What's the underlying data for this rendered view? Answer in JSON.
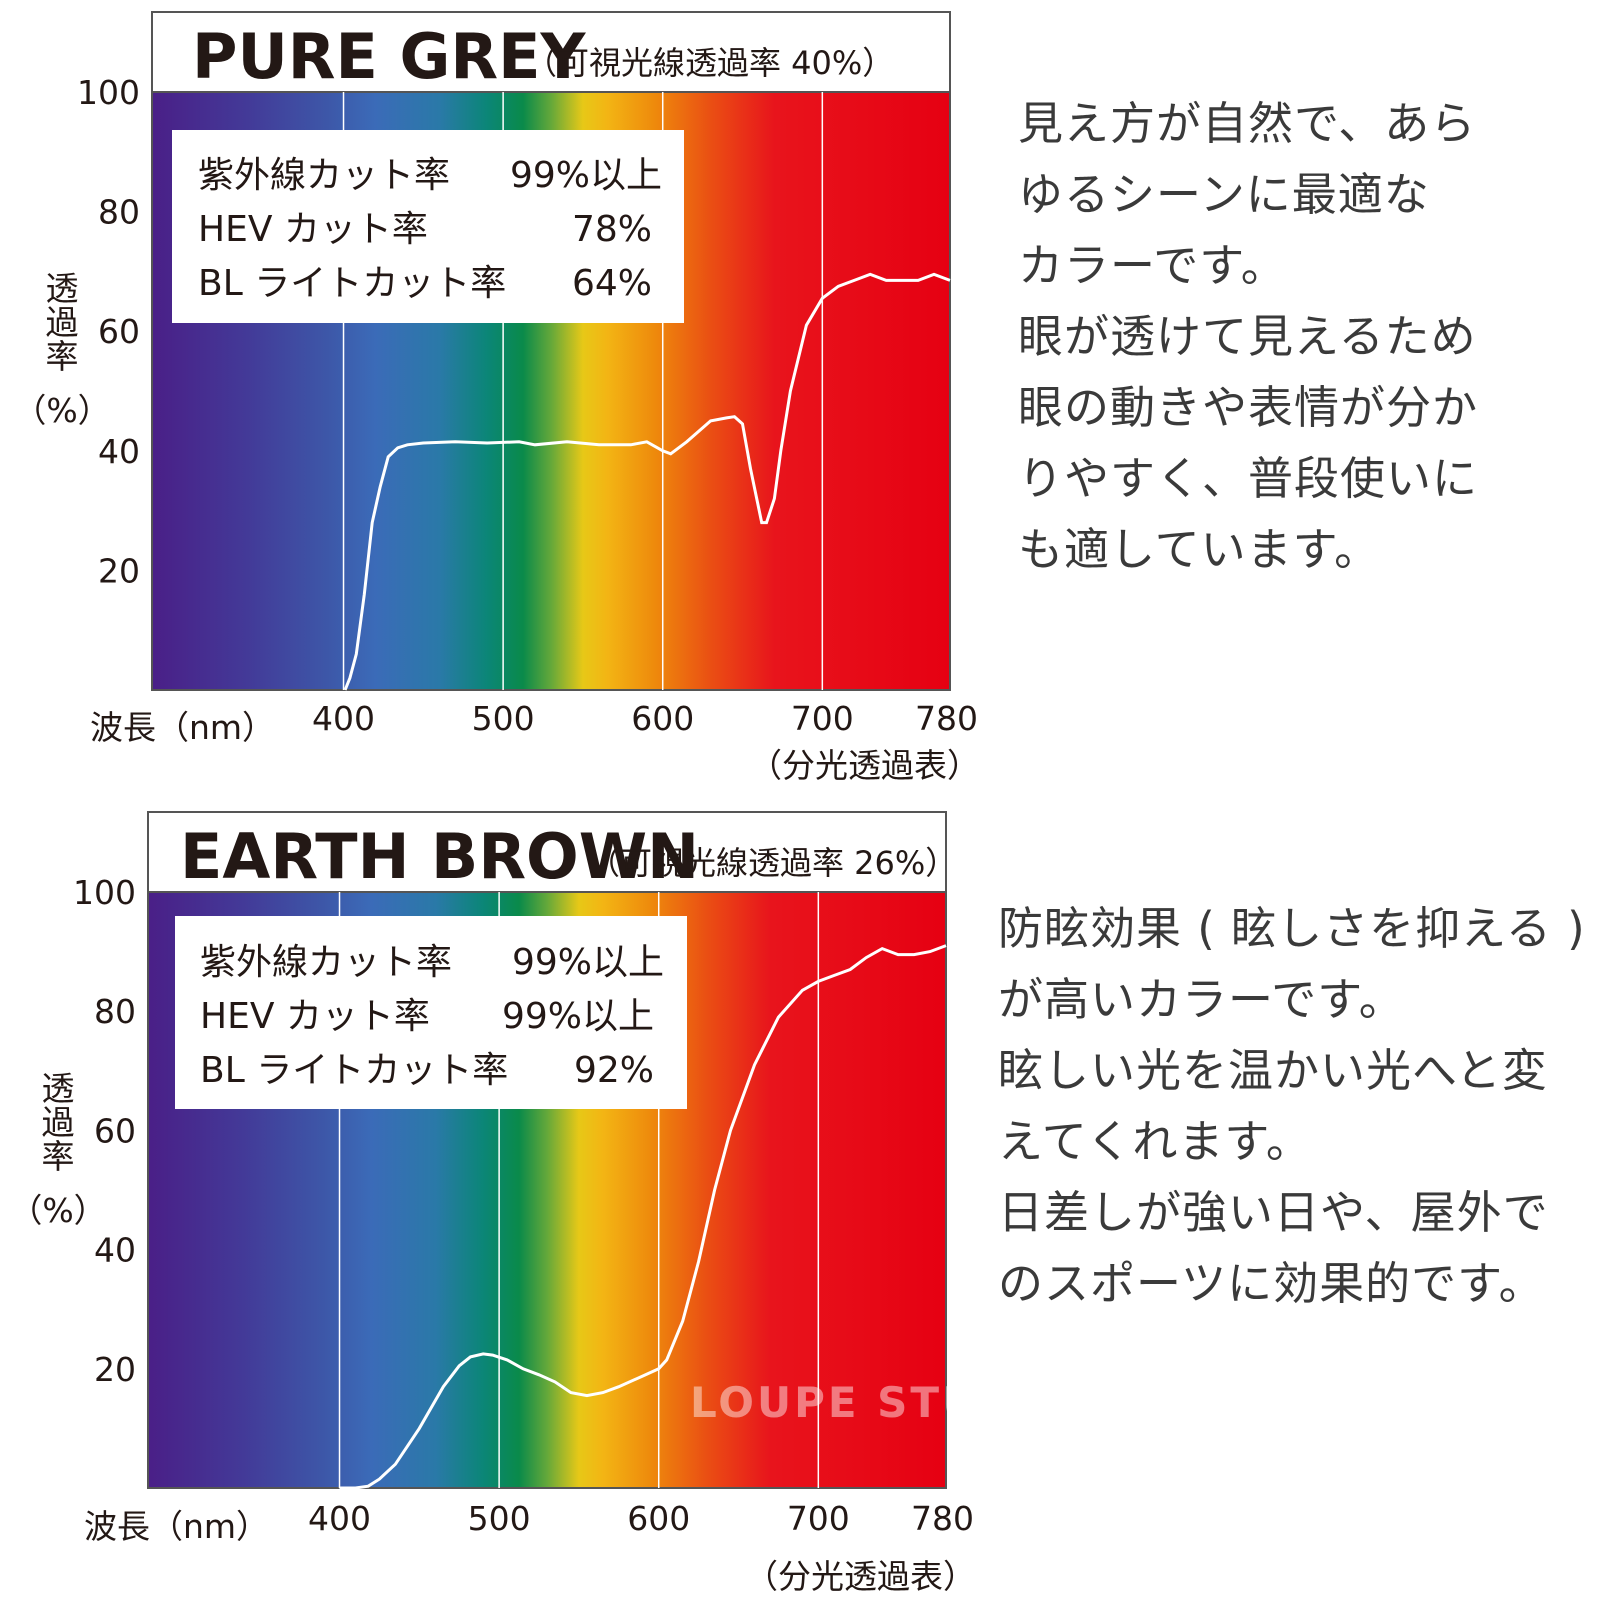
{
  "chart_data": [
    {
      "type": "line",
      "title": "PURE GREY",
      "subtitle": "（可視光線透過率 40%）",
      "xlabel": "波長（nm）",
      "ylabel": [
        "透",
        "過",
        "率",
        "（%）"
      ],
      "caption": "（分光透過表）",
      "xlim": [
        280,
        780
      ],
      "ylim": [
        0,
        100
      ],
      "grid_x": [
        400,
        500,
        600,
        700
      ],
      "x_ticks": [
        "400",
        "500",
        "600",
        "700",
        "780"
      ],
      "y_ticks": [
        "20",
        "40",
        "60",
        "80",
        "100"
      ],
      "info": [
        {
          "label": "紫外線カット率",
          "value": "99%以上"
        },
        {
          "label": "HEV カット率",
          "value": "78%"
        },
        {
          "label": "BL ライトカット率",
          "value": "64%"
        }
      ],
      "series": [
        {
          "name": "PURE GREY",
          "x": [
            401,
            404,
            408,
            413,
            418,
            423,
            428,
            434,
            440,
            450,
            470,
            490,
            510,
            520,
            540,
            560,
            580,
            590,
            600,
            605,
            615,
            630,
            640,
            645,
            650,
            655,
            662,
            665,
            670,
            674,
            680,
            690,
            700,
            710,
            720,
            730,
            740,
            750,
            760,
            770,
            780
          ],
          "y": [
            0,
            2,
            6,
            16,
            28,
            34,
            39,
            40.5,
            41,
            41.3,
            41.5,
            41.3,
            41.5,
            41,
            41.5,
            41,
            41,
            41.5,
            40,
            39.5,
            41.5,
            45,
            45.5,
            45.7,
            44.5,
            37,
            28,
            28,
            32,
            40,
            50,
            61,
            65.5,
            67.5,
            68.5,
            69.5,
            68.5,
            68.5,
            68.5,
            69.5,
            68.5
          ]
        }
      ]
    },
    {
      "type": "line",
      "title": "EARTH BROWN",
      "subtitle": "（可視光線透過率 26%）",
      "xlabel": "波長（nm）",
      "ylabel": [
        "透",
        "過",
        "率",
        "（%）"
      ],
      "caption": "（分光透過表）",
      "xlim": [
        280,
        780
      ],
      "ylim": [
        0,
        100
      ],
      "grid_x": [
        400,
        500,
        600,
        700
      ],
      "x_ticks": [
        "400",
        "500",
        "600",
        "700",
        "780"
      ],
      "y_ticks": [
        "20",
        "40",
        "60",
        "80",
        "100"
      ],
      "info": [
        {
          "label": "紫外線カット率",
          "value": "99%以上"
        },
        {
          "label": "HEV カット率",
          "value": "99%以上"
        },
        {
          "label": "BL ライトカット率",
          "value": "92%"
        }
      ],
      "series": [
        {
          "name": "EARTH BROWN",
          "x": [
            400,
            410,
            418,
            425,
            435,
            450,
            465,
            475,
            482,
            490,
            496,
            505,
            515,
            525,
            535,
            545,
            555,
            565,
            575,
            590,
            600,
            605,
            615,
            625,
            635,
            645,
            660,
            675,
            690,
            700,
            710,
            720,
            730,
            740,
            750,
            760,
            770,
            780
          ],
          "y": [
            0,
            0,
            0.3,
            1.5,
            4,
            10,
            17,
            20.5,
            22,
            22.5,
            22.3,
            21.5,
            20,
            19,
            17.8,
            16,
            15.5,
            16,
            17,
            18.8,
            20,
            21.5,
            28,
            38,
            50,
            60,
            71,
            79,
            83.5,
            85,
            86,
            87,
            89,
            90.5,
            89.5,
            89.5,
            90,
            91
          ]
        }
      ]
    }
  ],
  "descriptions": [
    [
      "見え方が自然で、あら",
      "ゆるシーンに最適な",
      "カラーです。",
      "眼が透けて見えるため",
      "眼の動きや表情が分か",
      "りやすく、普段使いに",
      "も適しています。"
    ],
    [
      "防眩効果 ( 眩しさを抑える )",
      "が高いカラーです。",
      "眩しい光を温かい光へと変",
      "えてくれます。",
      "日差しが強い日や、屋外で",
      "のスポーツに効果的です。"
    ]
  ],
  "watermark": "LOUPE STUDIO"
}
